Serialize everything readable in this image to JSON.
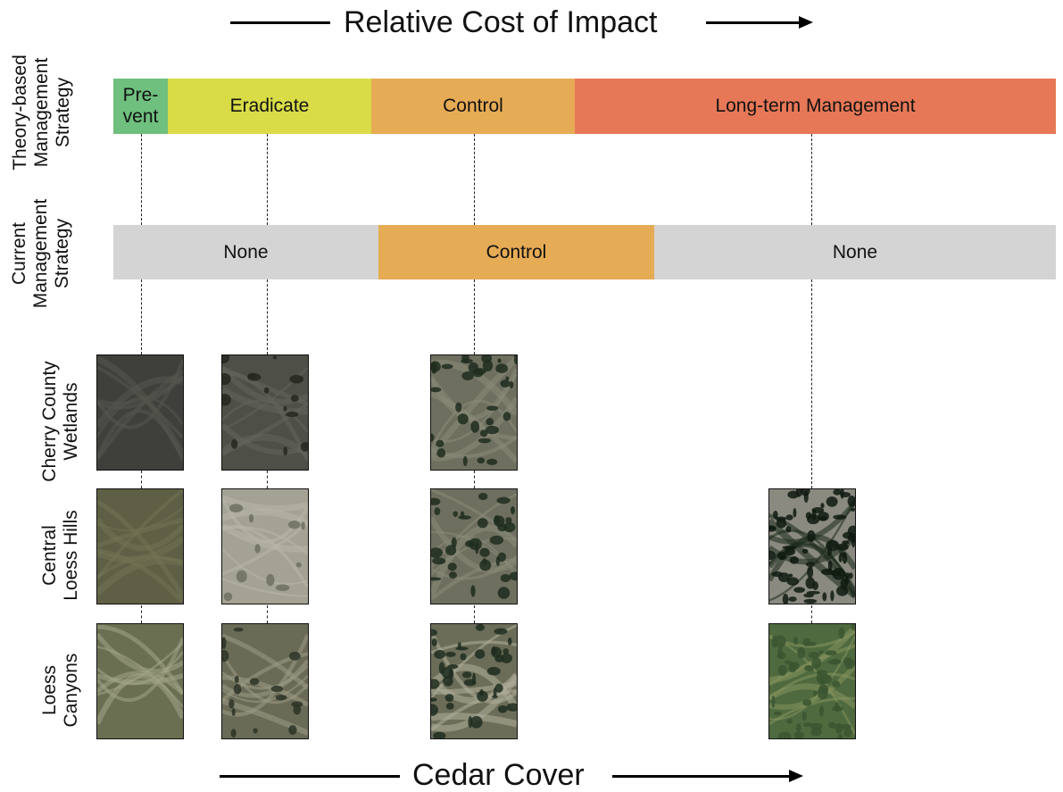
{
  "top_axis": {
    "title": "Relative Cost of Impact"
  },
  "bottom_axis": {
    "title": "Cedar Cover"
  },
  "row_labels": {
    "theory": [
      "Theory-based",
      "Management",
      "Strategy"
    ],
    "current": [
      "Current",
      "Management",
      "Strategy"
    ],
    "cherry": [
      "Cherry County",
      "Wetlands"
    ],
    "central": [
      "Central",
      "Loess Hills"
    ],
    "canyons": [
      "Loess",
      "Canyons"
    ]
  },
  "theory_strategy": [
    {
      "line1": "Pre-",
      "line2": "vent",
      "color": "#6fbf7e"
    },
    {
      "label": "Eradicate",
      "color": "#d9dc47"
    },
    {
      "label": "Control",
      "color": "#e6ab55"
    },
    {
      "label": "Long-term Management",
      "color": "#e77857"
    }
  ],
  "current_strategy": [
    {
      "label": "None",
      "color": "#d4d4d4"
    },
    {
      "label": "Control",
      "color": "#e6ab55"
    },
    {
      "label": "None",
      "color": "#d4d4d4"
    }
  ],
  "image_grid": {
    "rows": [
      "Cherry County Wetlands",
      "Central Loess Hills",
      "Loess Canyons"
    ],
    "thumbnails": [
      {
        "name": "cherry-prevent-image",
        "style": "dark-grass",
        "cover": 0
      },
      {
        "name": "cherry-eradicate-image",
        "style": "dark-grass-sparse",
        "cover": 1
      },
      {
        "name": "cherry-control-image",
        "style": "grass-cedar",
        "cover": 2
      },
      {
        "name": "central-prevent-image",
        "style": "olive-grass",
        "cover": 0
      },
      {
        "name": "central-eradicate-image",
        "style": "pale-grass",
        "cover": 1
      },
      {
        "name": "central-control-image",
        "style": "grass-cedar",
        "cover": 2
      },
      {
        "name": "central-longterm-image",
        "style": "dense-cedar",
        "cover": 3
      },
      {
        "name": "canyons-prevent-image",
        "style": "canyon-bare",
        "cover": 0
      },
      {
        "name": "canyons-eradicate-image",
        "style": "canyon-sparse",
        "cover": 1
      },
      {
        "name": "canyons-control-image",
        "style": "canyon-cedar",
        "cover": 2
      },
      {
        "name": "canyons-longterm-image",
        "style": "green-forest",
        "cover": 3
      }
    ]
  }
}
